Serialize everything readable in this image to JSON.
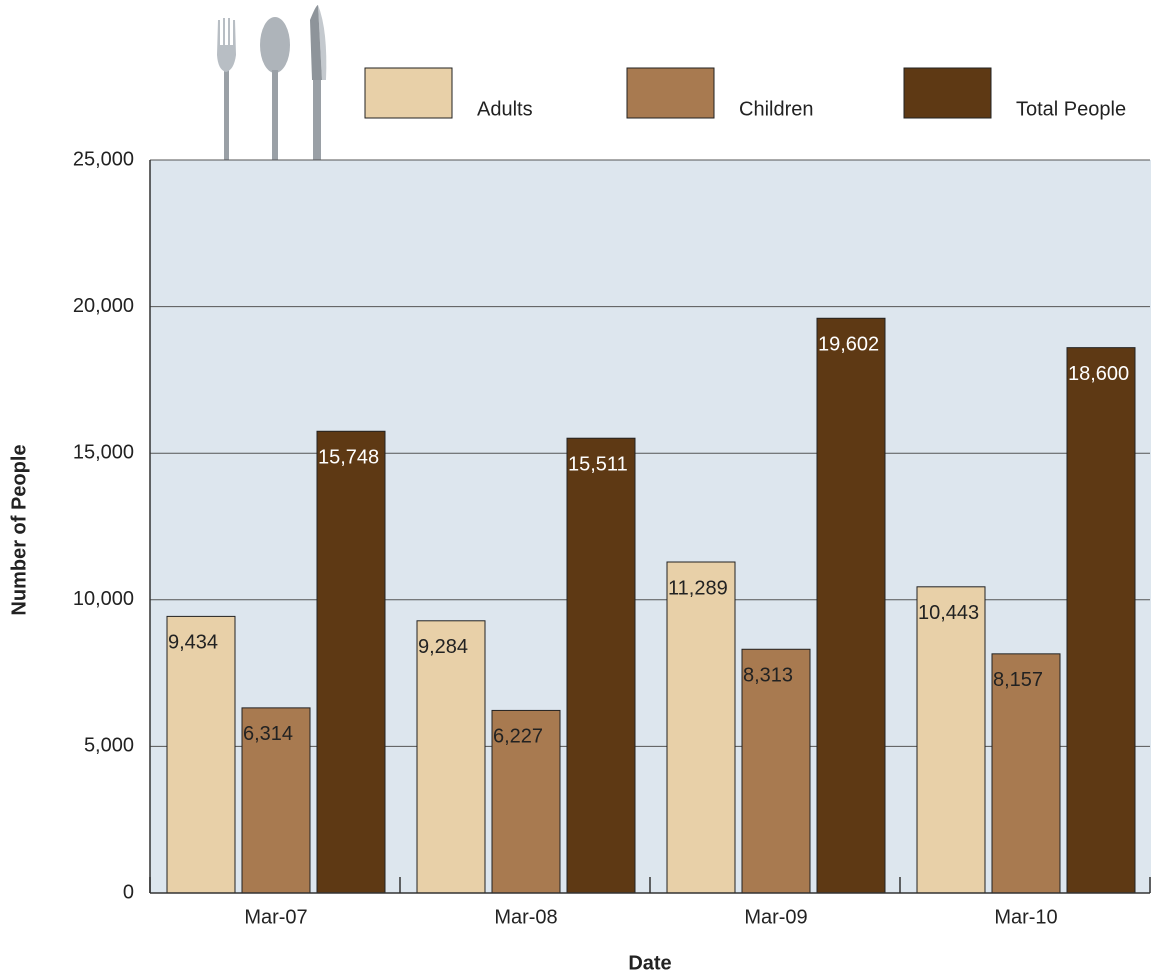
{
  "chart_data": {
    "type": "bar",
    "categories": [
      "Mar-07",
      "Mar-08",
      "Mar-09",
      "Mar-10"
    ],
    "series": [
      {
        "name": "Adults",
        "color": "#e8d0a8",
        "values": [
          9434,
          9284,
          11289,
          10443
        ],
        "value_labels": [
          "9,434",
          "9,284",
          "11,289",
          "10,443"
        ]
      },
      {
        "name": "Children",
        "color": "#a87a50",
        "values": [
          6314,
          6227,
          8313,
          8157
        ],
        "value_labels": [
          "6,314",
          "6,227",
          "8,313",
          "8,157"
        ]
      },
      {
        "name": "Total People",
        "color": "#5e3914",
        "values": [
          15748,
          15511,
          19602,
          18600
        ],
        "value_labels": [
          "15,748",
          "15,511",
          "19,602",
          "18,600"
        ]
      }
    ],
    "ylim": [
      0,
      25000
    ],
    "yticks": [
      0,
      {
        "value": 5000,
        "label": "5,000"
      },
      {
        "value": 10000,
        "label": "10,000"
      },
      {
        "value": 15000,
        "label": "15,000"
      },
      {
        "value": 20000,
        "label": "20,000"
      },
      {
        "value": 25000,
        "label": "25,000"
      }
    ],
    "ylabel": "Number of People",
    "xlabel": "Date",
    "grid": true,
    "legend": "top"
  }
}
